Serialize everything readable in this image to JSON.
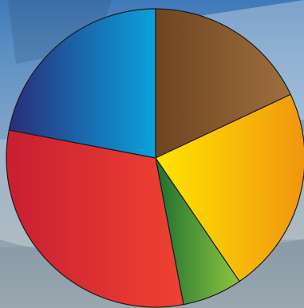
{
  "chart_data": {
    "type": "pie",
    "title": "",
    "start_angle_deg": 0,
    "direction": "clockwise",
    "slices": [
      {
        "value": 18.0,
        "colors": [
          "#6e4420",
          "#9f6e3d"
        ]
      },
      {
        "value": 22.5,
        "colors": [
          "#ffe600",
          "#f0960f"
        ]
      },
      {
        "value": 6.5,
        "colors": [
          "#1f6e32",
          "#8cc63e"
        ]
      },
      {
        "value": 31.0,
        "colors": [
          "#c81f32",
          "#ef4232"
        ]
      },
      {
        "value": 22.0,
        "colors": [
          "#2a2d78",
          "#0aa2dc"
        ]
      }
    ]
  },
  "background": {
    "icon": "boat-photo",
    "sky_color": "#4a80bd",
    "water_color": "#9aa6b0"
  }
}
